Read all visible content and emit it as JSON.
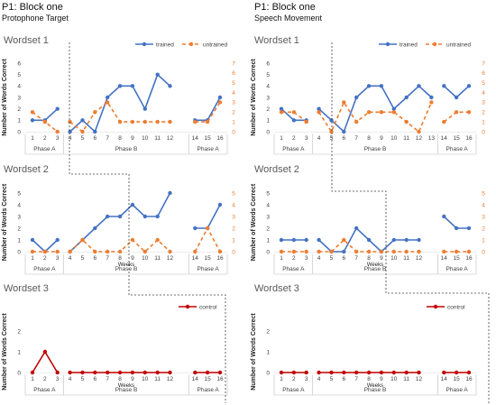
{
  "figure": {
    "left": {
      "title": "P1: Block one",
      "subtitle": "Protophone Target"
    },
    "right": {
      "title": "P1: Block one",
      "subtitle": "Speech Movement"
    },
    "ylabel": "Number of Words Correct",
    "xlabel": "Weeks",
    "legend": {
      "trained": "trained",
      "untrained": "untrained",
      "control": "control"
    },
    "phases": [
      "Phase A",
      "Phase B",
      "Phase A"
    ],
    "colors": {
      "trained": "#4472C4",
      "untrained": "#ED7D31",
      "control": "#C00000"
    }
  },
  "chart_data": [
    {
      "type": "line",
      "panel": "left",
      "title": "Wordset 1",
      "xlabel": "",
      "ylabel": "Number of Words Correct",
      "ylim": [
        0,
        6
      ],
      "ylim_right": [
        0,
        7
      ],
      "x": [
        1,
        2,
        3,
        4,
        5,
        6,
        7,
        8,
        9,
        10,
        11,
        12,
        14,
        15,
        16
      ],
      "series": [
        {
          "name": "trained",
          "axis": "left",
          "values": [
            1,
            1,
            2,
            0,
            1,
            0,
            3,
            4,
            4,
            2,
            5,
            4,
            1,
            1,
            3
          ]
        },
        {
          "name": "untrained",
          "axis": "right",
          "values": [
            2,
            1,
            0,
            1,
            0,
            2,
            3,
            1,
            1,
            1,
            1,
            1,
            1,
            1,
            3
          ]
        }
      ]
    },
    {
      "type": "line",
      "panel": "left",
      "title": "Wordset 2",
      "xlabel": "Weeks",
      "ylabel": "Number of Words Correct",
      "ylim": [
        0,
        5
      ],
      "ylim_right": [
        0,
        5
      ],
      "x": [
        1,
        2,
        3,
        4,
        5,
        6,
        7,
        8,
        9,
        10,
        11,
        12,
        14,
        15,
        16
      ],
      "series": [
        {
          "name": "trained",
          "axis": "left",
          "values": [
            1,
            0,
            1,
            0,
            1,
            2,
            3,
            3,
            4,
            3,
            3,
            5,
            2,
            2,
            4
          ]
        },
        {
          "name": "untrained",
          "axis": "right",
          "values": [
            0,
            0,
            0,
            0,
            1,
            0,
            0,
            0,
            1,
            0,
            1,
            0,
            0,
            2,
            0
          ]
        }
      ]
    },
    {
      "type": "line",
      "panel": "left",
      "title": "Wordset 3",
      "xlabel": "Weeks",
      "ylabel": "Number of Words Correct",
      "ylim": [
        0,
        2
      ],
      "x": [
        1,
        2,
        3,
        4,
        5,
        6,
        7,
        8,
        9,
        10,
        11,
        12,
        14,
        15,
        16
      ],
      "series": [
        {
          "name": "control",
          "axis": "left",
          "values": [
            0,
            1,
            0,
            0,
            0,
            0,
            0,
            0,
            0,
            0,
            0,
            0,
            0,
            0,
            0
          ]
        }
      ]
    },
    {
      "type": "line",
      "panel": "right",
      "title": "Wordset 1",
      "xlabel": "",
      "ylabel": "Number of Words Correct",
      "ylim": [
        0,
        6
      ],
      "ylim_right": [
        0,
        7
      ],
      "x": [
        1,
        2,
        3,
        4,
        5,
        6,
        7,
        8,
        9,
        10,
        11,
        12,
        13,
        14,
        15,
        16
      ],
      "series": [
        {
          "name": "trained",
          "axis": "left",
          "values": [
            2,
            1,
            1,
            2,
            1,
            0,
            3,
            4,
            4,
            2,
            3,
            4,
            3,
            4,
            3,
            4
          ]
        },
        {
          "name": "untrained",
          "axis": "right",
          "values": [
            2,
            2,
            1,
            2,
            0,
            3,
            1,
            2,
            2,
            2,
            1,
            0,
            3,
            1,
            2,
            2
          ]
        }
      ]
    },
    {
      "type": "line",
      "panel": "right",
      "title": "Wordset 2",
      "xlabel": "Weeks",
      "ylabel": "Number of Words Correct",
      "ylim": [
        0,
        5
      ],
      "ylim_right": [
        0,
        5
      ],
      "x": [
        1,
        2,
        3,
        4,
        5,
        6,
        7,
        8,
        9,
        10,
        11,
        12,
        14,
        15,
        16
      ],
      "series": [
        {
          "name": "trained",
          "axis": "left",
          "values": [
            1,
            1,
            1,
            1,
            0,
            0,
            2,
            1,
            0,
            1,
            1,
            1,
            3,
            2,
            2
          ]
        },
        {
          "name": "untrained",
          "axis": "right",
          "values": [
            0,
            0,
            0,
            0,
            0,
            1,
            0,
            0,
            0,
            0,
            0,
            0,
            0,
            0,
            0
          ]
        }
      ]
    },
    {
      "type": "line",
      "panel": "right",
      "title": "Wordset 3",
      "xlabel": "Weeks",
      "ylabel": "Number of Words Correct",
      "ylim": [
        0,
        2
      ],
      "x": [
        1,
        2,
        3,
        4,
        5,
        6,
        7,
        8,
        9,
        10,
        11,
        12,
        14,
        15,
        16
      ],
      "series": [
        {
          "name": "control",
          "axis": "left",
          "values": [
            0,
            0,
            0,
            0,
            0,
            0,
            0,
            0,
            0,
            0,
            0,
            0,
            0,
            0,
            0
          ]
        }
      ]
    }
  ]
}
